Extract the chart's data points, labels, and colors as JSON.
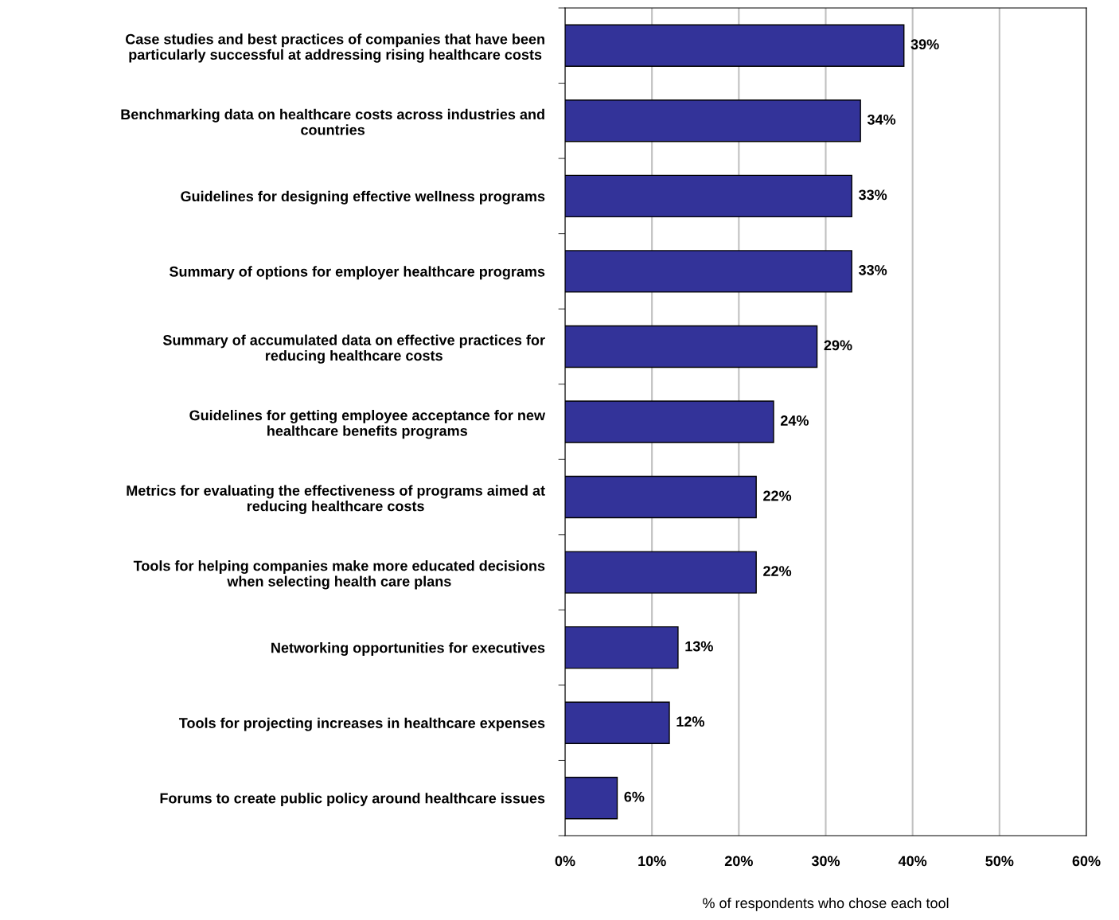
{
  "chart_data": {
    "type": "bar",
    "orientation": "horizontal",
    "xlabel": "% of respondents who chose each tool",
    "categories": [
      "Case studies and best practices of companies that have been\nparticularly successful at addressing rising healthcare costs",
      "Benchmarking data on healthcare costs across industries and\ncountries",
      "Guidelines for designing effective wellness programs",
      "Summary of options for employer healthcare programs",
      "Summary of accumulated data on effective practices for\nreducing healthcare costs",
      "Guidelines for getting employee acceptance for new\nhealthcare benefits programs",
      "Metrics for evaluating the effectiveness of programs aimed at\nreducing healthcare costs",
      "Tools for helping companies make more educated decisions\nwhen selecting health care plans",
      "Networking opportunities for executives",
      "Tools for projecting increases in healthcare expenses",
      "Forums to create public policy around healthcare issues"
    ],
    "values": [
      39,
      34,
      33,
      33,
      29,
      24,
      22,
      22,
      13,
      12,
      6
    ],
    "value_labels": [
      "39%",
      "34%",
      "33%",
      "33%",
      "29%",
      "24%",
      "22%",
      "22%",
      "13%",
      "12%",
      "6%"
    ],
    "color": "#333399",
    "xlim": [
      0,
      60
    ],
    "xticks": [
      {
        "value": 0,
        "label": "0%"
      },
      {
        "value": 10,
        "label": "10%"
      },
      {
        "value": 20,
        "label": "20%"
      },
      {
        "value": 30,
        "label": "30%"
      },
      {
        "value": 40,
        "label": "40%"
      },
      {
        "value": 50,
        "label": "50%"
      },
      {
        "value": 60,
        "label": "60%"
      }
    ],
    "grid": "x"
  }
}
